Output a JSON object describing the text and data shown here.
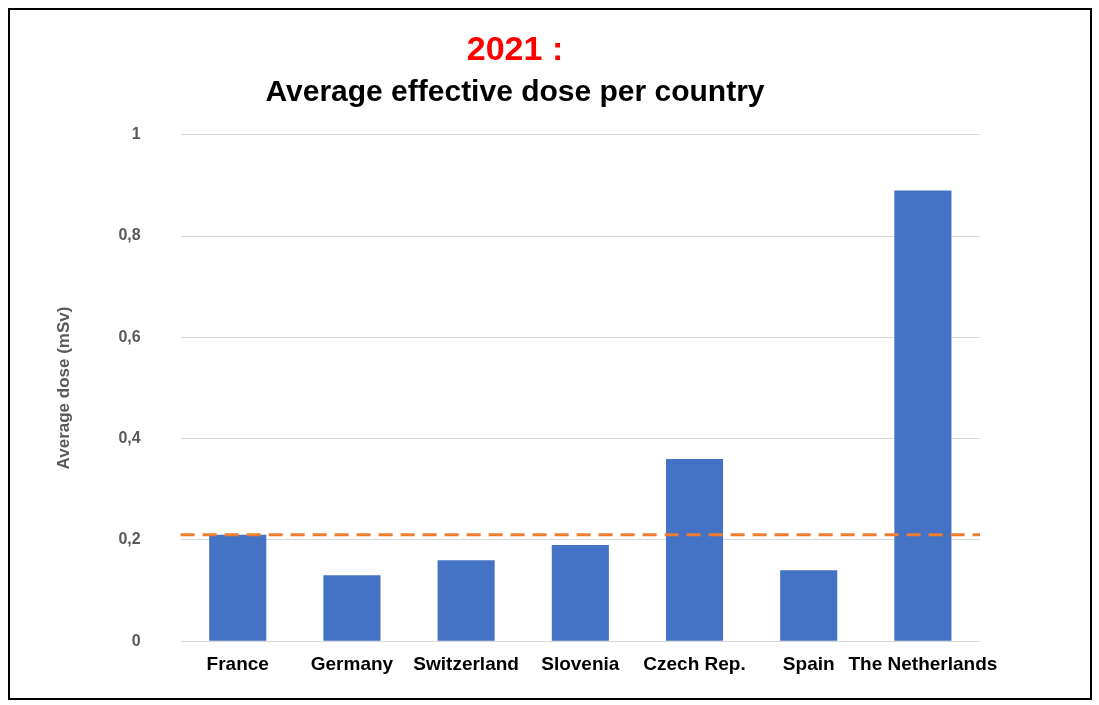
{
  "chart_data": {
    "type": "bar",
    "title": "2021 :",
    "subtitle": "Average effective dose per country",
    "ylabel": "Average dose (mSv)",
    "categories": [
      "France",
      "Germany",
      "Switzerland",
      "Slovenia",
      "Czech Rep.",
      "Spain",
      "The Netherlands"
    ],
    "values": [
      0.21,
      0.13,
      0.16,
      0.19,
      0.36,
      0.14,
      0.89
    ],
    "color": "#4472c4",
    "ylim": [
      0,
      1
    ],
    "yticks": [
      {
        "value": 0,
        "label": "0"
      },
      {
        "value": 0.2,
        "label": "0,2"
      },
      {
        "value": 0.4,
        "label": "0,4"
      },
      {
        "value": 0.6,
        "label": "0,6"
      },
      {
        "value": 0.8,
        "label": "0,8"
      },
      {
        "value": 1,
        "label": "1"
      }
    ],
    "grid": "y",
    "legend": false,
    "ref_lines": [
      {
        "axis": "y",
        "value": 0.21,
        "color": "#ed7d31",
        "line_style": "dashed"
      }
    ]
  }
}
